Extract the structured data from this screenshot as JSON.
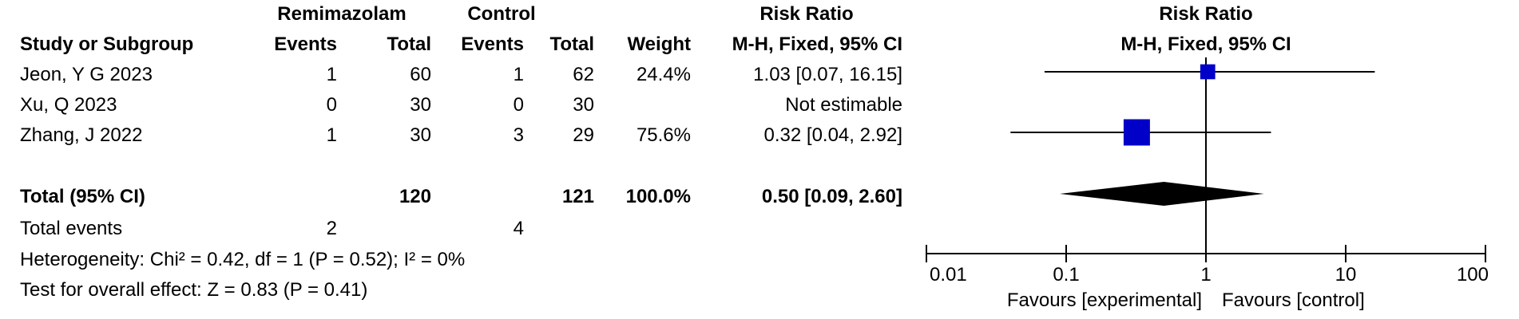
{
  "headers": {
    "group1": "Remimazolam",
    "group2": "Control",
    "risk_ratio_left": "Risk Ratio",
    "risk_ratio_right": "Risk Ratio",
    "study": "Study or Subgroup",
    "events1": "Events",
    "total1": "Total",
    "events2": "Events",
    "total2": "Total",
    "weight": "Weight",
    "method_left": "M-H, Fixed, 95% CI",
    "method_right": "M-H, Fixed, 95% CI"
  },
  "studies": [
    {
      "name": "Jeon, Y G 2023",
      "events1": "1",
      "total1": "60",
      "events2": "1",
      "total2": "62",
      "weight": "24.4%",
      "ci_text": "1.03 [0.07, 16.15]"
    },
    {
      "name": "Xu, Q 2023",
      "events1": "0",
      "total1": "30",
      "events2": "0",
      "total2": "30",
      "weight": "",
      "ci_text": "Not estimable"
    },
    {
      "name": "Zhang, J 2022",
      "events1": "1",
      "total1": "30",
      "events2": "3",
      "total2": "29",
      "weight": "75.6%",
      "ci_text": "0.32 [0.04, 2.92]"
    }
  ],
  "total": {
    "label": "Total (95% CI)",
    "total1": "120",
    "total2": "121",
    "weight": "100.0%",
    "ci_text": "0.50 [0.09, 2.60]"
  },
  "total_events": {
    "label": "Total events",
    "events1": "2",
    "events2": "4"
  },
  "heterogeneity": "Heterogeneity: Chi² = 0.42, df = 1 (P = 0.52); I² = 0%",
  "overall_effect": "Test for overall effect: Z = 0.83 (P = 0.41)",
  "favours_left": "Favours [experimental]",
  "favours_right": "Favours [control]",
  "colors": {
    "study_marker": "#0000c8",
    "diamond": "#000000",
    "line": "#000000"
  },
  "chart_data": {
    "type": "forest",
    "scale": "log",
    "xlim": [
      0.01,
      100
    ],
    "null_line": 1,
    "ticks": [
      {
        "value": 0.01,
        "label": "0.01"
      },
      {
        "value": 0.1,
        "label": "0.1"
      },
      {
        "value": 1,
        "label": "1"
      },
      {
        "value": 10,
        "label": "10"
      },
      {
        "value": 100,
        "label": "100"
      }
    ],
    "studies": [
      {
        "name": "Jeon, Y G 2023",
        "rr": 1.03,
        "lower": 0.07,
        "upper": 16.15,
        "weight": 24.4
      },
      {
        "name": "Xu, Q 2023",
        "rr": null,
        "lower": null,
        "upper": null,
        "weight": null
      },
      {
        "name": "Zhang, J 2022",
        "rr": 0.32,
        "lower": 0.04,
        "upper": 2.92,
        "weight": 75.6
      }
    ],
    "pooled": {
      "rr": 0.5,
      "lower": 0.09,
      "upper": 2.6
    }
  }
}
